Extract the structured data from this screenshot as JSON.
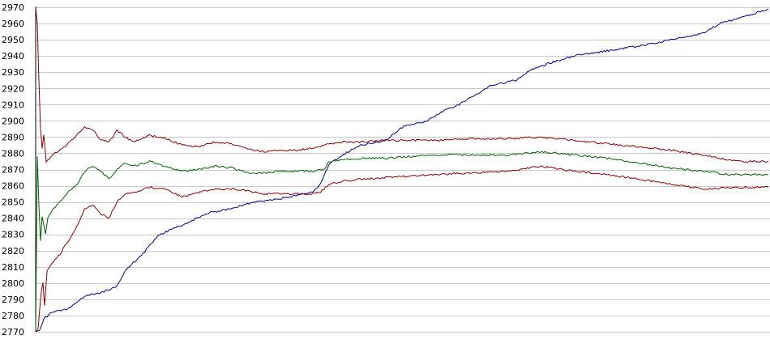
{
  "chart_data": {
    "type": "line",
    "title": "",
    "xlabel": "",
    "ylabel": "",
    "ylim": [
      2770,
      2970
    ],
    "xlim": [
      0,
      900
    ],
    "yticks": [
      2770,
      2780,
      2790,
      2800,
      2810,
      2820,
      2830,
      2840,
      2850,
      2860,
      2870,
      2880,
      2890,
      2900,
      2910,
      2920,
      2930,
      2940,
      2950,
      2960,
      2970
    ],
    "ytick_labels": [
      "2770",
      "2780",
      "2790",
      "2800",
      "2810",
      "2820",
      "2830",
      "2840",
      "2850",
      "2860",
      "2870",
      "2880",
      "2890",
      "2900",
      "2910",
      "2920",
      "2930",
      "2940",
      "2950",
      "2960",
      "2970"
    ],
    "grid": true,
    "legend": "none",
    "series": [
      {
        "color": "#00008b",
        "points": [
          [
            0,
            2770
          ],
          [
            5,
            2771
          ],
          [
            10,
            2778
          ],
          [
            20,
            2782
          ],
          [
            40,
            2784
          ],
          [
            60,
            2792
          ],
          [
            80,
            2794
          ],
          [
            100,
            2798
          ],
          [
            110,
            2808
          ],
          [
            130,
            2817
          ],
          [
            150,
            2829
          ],
          [
            170,
            2834
          ],
          [
            190,
            2838
          ],
          [
            210,
            2843
          ],
          [
            240,
            2846
          ],
          [
            270,
            2850
          ],
          [
            300,
            2852
          ],
          [
            320,
            2854
          ],
          [
            340,
            2856
          ],
          [
            350,
            2861
          ],
          [
            360,
            2873
          ],
          [
            380,
            2880
          ],
          [
            400,
            2885
          ],
          [
            430,
            2888
          ],
          [
            450,
            2896
          ],
          [
            480,
            2900
          ],
          [
            500,
            2906
          ],
          [
            520,
            2910
          ],
          [
            540,
            2916
          ],
          [
            560,
            2922
          ],
          [
            590,
            2925
          ],
          [
            610,
            2932
          ],
          [
            640,
            2937
          ],
          [
            670,
            2941
          ],
          [
            700,
            2943
          ],
          [
            740,
            2946
          ],
          [
            780,
            2950
          ],
          [
            820,
            2954
          ],
          [
            840,
            2960
          ],
          [
            870,
            2964
          ],
          [
            900,
            2969
          ]
        ]
      },
      {
        "color": "#8b0000",
        "points": [
          [
            0,
            2970
          ],
          [
            2,
            2960
          ],
          [
            4,
            2925
          ],
          [
            6,
            2895
          ],
          [
            8,
            2883
          ],
          [
            10,
            2891
          ],
          [
            13,
            2874
          ],
          [
            20,
            2879
          ],
          [
            30,
            2882
          ],
          [
            40,
            2886
          ],
          [
            50,
            2891
          ],
          [
            60,
            2896
          ],
          [
            70,
            2895
          ],
          [
            80,
            2888
          ],
          [
            90,
            2887
          ],
          [
            100,
            2894
          ],
          [
            110,
            2890
          ],
          [
            120,
            2887
          ],
          [
            140,
            2891
          ],
          [
            160,
            2889
          ],
          [
            180,
            2885
          ],
          [
            200,
            2884
          ],
          [
            220,
            2887
          ],
          [
            240,
            2886
          ],
          [
            260,
            2883
          ],
          [
            280,
            2881
          ],
          [
            300,
            2882
          ],
          [
            320,
            2882
          ],
          [
            340,
            2883
          ],
          [
            360,
            2886
          ],
          [
            380,
            2887
          ],
          [
            400,
            2887
          ],
          [
            430,
            2888
          ],
          [
            460,
            2888
          ],
          [
            500,
            2888
          ],
          [
            540,
            2889
          ],
          [
            580,
            2889
          ],
          [
            620,
            2890
          ],
          [
            660,
            2888
          ],
          [
            700,
            2886
          ],
          [
            740,
            2884
          ],
          [
            780,
            2882
          ],
          [
            820,
            2879
          ],
          [
            850,
            2876
          ],
          [
            870,
            2875
          ],
          [
            900,
            2875
          ]
        ]
      },
      {
        "color": "#006400",
        "points": [
          [
            0,
            2770
          ],
          [
            2,
            2878
          ],
          [
            4,
            2848
          ],
          [
            6,
            2826
          ],
          [
            8,
            2841
          ],
          [
            10,
            2836
          ],
          [
            12,
            2830
          ],
          [
            15,
            2840
          ],
          [
            20,
            2845
          ],
          [
            30,
            2850
          ],
          [
            40,
            2856
          ],
          [
            50,
            2860
          ],
          [
            60,
            2869
          ],
          [
            70,
            2872
          ],
          [
            80,
            2869
          ],
          [
            90,
            2864
          ],
          [
            100,
            2870
          ],
          [
            110,
            2874
          ],
          [
            120,
            2872
          ],
          [
            140,
            2875
          ],
          [
            160,
            2872
          ],
          [
            180,
            2869
          ],
          [
            200,
            2870
          ],
          [
            220,
            2872
          ],
          [
            240,
            2871
          ],
          [
            260,
            2868
          ],
          [
            280,
            2868
          ],
          [
            300,
            2869
          ],
          [
            320,
            2869
          ],
          [
            340,
            2869
          ],
          [
            355,
            2870
          ],
          [
            360,
            2875
          ],
          [
            380,
            2876
          ],
          [
            400,
            2877
          ],
          [
            430,
            2877
          ],
          [
            460,
            2878
          ],
          [
            500,
            2879
          ],
          [
            540,
            2879
          ],
          [
            580,
            2879
          ],
          [
            620,
            2881
          ],
          [
            660,
            2879
          ],
          [
            700,
            2877
          ],
          [
            740,
            2874
          ],
          [
            780,
            2871
          ],
          [
            820,
            2869
          ],
          [
            850,
            2867
          ],
          [
            870,
            2867
          ],
          [
            900,
            2867
          ]
        ]
      },
      {
        "color": "#8b0000",
        "points": [
          [
            0,
            2770
          ],
          [
            3,
            2772
          ],
          [
            5,
            2784
          ],
          [
            7,
            2795
          ],
          [
            9,
            2800
          ],
          [
            11,
            2786
          ],
          [
            14,
            2808
          ],
          [
            20,
            2812
          ],
          [
            30,
            2818
          ],
          [
            40,
            2826
          ],
          [
            50,
            2834
          ],
          [
            60,
            2846
          ],
          [
            70,
            2848
          ],
          [
            80,
            2843
          ],
          [
            90,
            2840
          ],
          [
            100,
            2850
          ],
          [
            110,
            2855
          ],
          [
            120,
            2856
          ],
          [
            140,
            2859
          ],
          [
            160,
            2858
          ],
          [
            180,
            2853
          ],
          [
            200,
            2856
          ],
          [
            220,
            2858
          ],
          [
            240,
            2858
          ],
          [
            260,
            2857
          ],
          [
            280,
            2855
          ],
          [
            300,
            2855
          ],
          [
            320,
            2855
          ],
          [
            340,
            2855
          ],
          [
            350,
            2856
          ],
          [
            360,
            2861
          ],
          [
            380,
            2863
          ],
          [
            400,
            2864
          ],
          [
            430,
            2865
          ],
          [
            460,
            2866
          ],
          [
            500,
            2867
          ],
          [
            540,
            2868
          ],
          [
            580,
            2869
          ],
          [
            620,
            2872
          ],
          [
            660,
            2869
          ],
          [
            700,
            2867
          ],
          [
            740,
            2864
          ],
          [
            780,
            2861
          ],
          [
            820,
            2858
          ],
          [
            850,
            2859
          ],
          [
            870,
            2859
          ],
          [
            900,
            2859
          ]
        ]
      }
    ]
  }
}
